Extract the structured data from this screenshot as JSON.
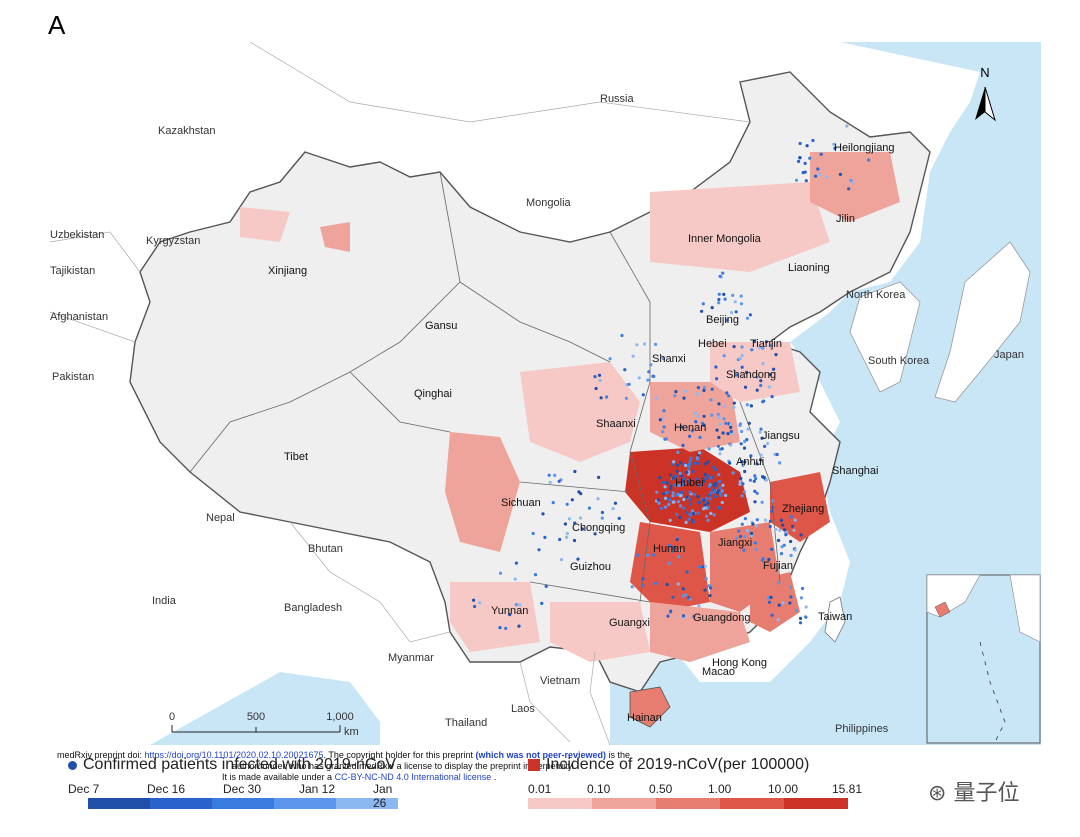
{
  "panel_letter": "A",
  "north_label": "N",
  "countries": [
    "Russia",
    "Kazakhstan",
    "Mongolia",
    "Uzbekistan",
    "Kyrgyzstan",
    "Tajikistan",
    "Afghanistan",
    "Pakistan",
    "India",
    "Nepal",
    "Bhutan",
    "Bangladesh",
    "Myanmar",
    "Laos",
    "Vietnam",
    "Thailand",
    "Philippines",
    "North Korea",
    "South Korea",
    "Japan"
  ],
  "provinces": [
    "Heilongjiang",
    "Jilin",
    "Liaoning",
    "Inner Mongolia",
    "Xinjiang",
    "Gansu",
    "Qinghai",
    "Tibet",
    "Beijing",
    "Tianjin",
    "Hebei",
    "Shanxi",
    "Shandong",
    "Shaanxi",
    "Henan",
    "Jiangsu",
    "Anhui",
    "Shanghai",
    "Hubei",
    "Zhejiang",
    "Sichuan",
    "Chongqing",
    "Hunan",
    "Jiangxi",
    "Guizhou",
    "Fujian",
    "Yunnan",
    "Guangxi",
    "Guangdong",
    "Taiwan",
    "Hong Kong",
    "Macao",
    "Hainan"
  ],
  "scale_bar": {
    "ticks": [
      "0",
      "500",
      "1,000"
    ],
    "unit": "km"
  },
  "caption": {
    "line1_prefix": "medRxiv preprint doi: ",
    "line1_link": "https://doi.org/10.1101/2020.02.10.20021675",
    "line1_mid": ". The copyright holder for this preprint ",
    "line1_bold": "(which was not peer-reviewed)",
    "line1_suffix": " is the",
    "line2": "author/funder, who has granted medRxiv a license to display the preprint in perpetuity.",
    "line3_prefix": "It is made available under a ",
    "line3_link": "CC-BY-NC-ND 4.0 International license",
    "line3_suffix": " ."
  },
  "legend_patients": {
    "title": "Confirmed patients infected with 2019-nCoV",
    "ticks": [
      "Dec 7",
      "Dec 16",
      "Dec 30",
      "Jan 12",
      "Jan 26"
    ],
    "colors": [
      "#1f4fa8",
      "#2a62cc",
      "#3a7be0",
      "#5c97ec",
      "#8cb8f2"
    ]
  },
  "legend_incidence": {
    "title": "Incidence of 2019-nCoV(per 100000)",
    "ticks": [
      "0.01",
      "0.10",
      "0.50",
      "1.00",
      "10.00",
      "15.81"
    ],
    "colors": [
      "#f6c9c6",
      "#eea39b",
      "#e67d70",
      "#de5648",
      "#cc3327"
    ]
  },
  "watermark": "量子位",
  "colors": {
    "sea": "#c9e6f7",
    "land_outside": "#ffffff",
    "china_base": "#efefef",
    "border": "#555555"
  }
}
